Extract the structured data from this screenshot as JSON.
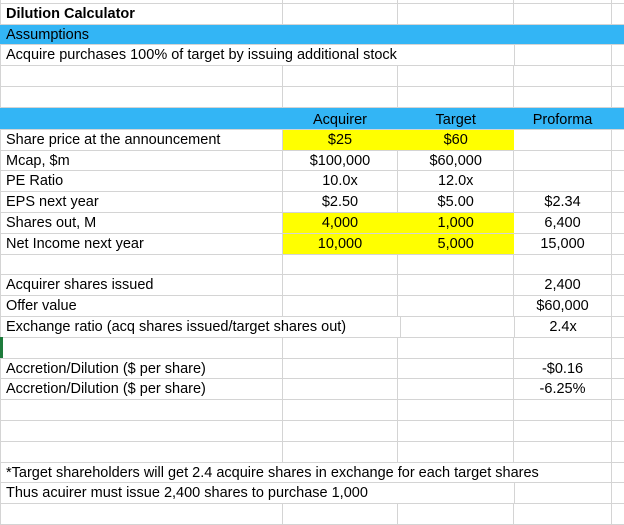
{
  "title": "Dilution Calculator",
  "section": "Assumptions",
  "assumption": "Acquire purchases 100% of target by issuing additional stock",
  "columns": [
    "Acquirer",
    "Target",
    "Proforma"
  ],
  "rows": [
    {
      "label": "Share price at the announcement",
      "acquirer": "$25",
      "target": "$60",
      "proforma": ""
    },
    {
      "label": "Mcap, $m",
      "acquirer": "$100,000",
      "target": "$60,000",
      "proforma": ""
    },
    {
      "label": "PE Ratio",
      "acquirer": "10.0x",
      "target": "12.0x",
      "proforma": ""
    },
    {
      "label": "EPS next year",
      "acquirer": "$2.50",
      "target": "$5.00",
      "proforma": "$2.34"
    },
    {
      "label": "Shares out, M",
      "acquirer": "4,000",
      "target": "1,000",
      "proforma": "6,400"
    },
    {
      "label": "Net Income next year",
      "acquirer": "10,000",
      "target": "5,000",
      "proforma": "15,000"
    }
  ],
  "deal": [
    {
      "label": "Acquirer shares issued",
      "value": "2,400"
    },
    {
      "label": "Offer value",
      "value": "$60,000"
    },
    {
      "label": "Exchange ratio (acq shares issued/target shares out)",
      "value": "2.4x"
    }
  ],
  "accretion": [
    {
      "label": "Accretion/Dilution ($ per share)",
      "value": "-$0.16"
    },
    {
      "label": "Accretion/Dilution ($ per share)",
      "value": "-6.25%"
    }
  ],
  "notes": [
    "*Target shareholders will get 2.4 acquire shares in exchange for each target shares",
    "Thus acuirer must issue 2,400 shares to purchase 1,000"
  ],
  "colors": {
    "header_blue": "#33b5f5",
    "input_yellow": "#ffff00",
    "grid": "#d4d4d4"
  }
}
